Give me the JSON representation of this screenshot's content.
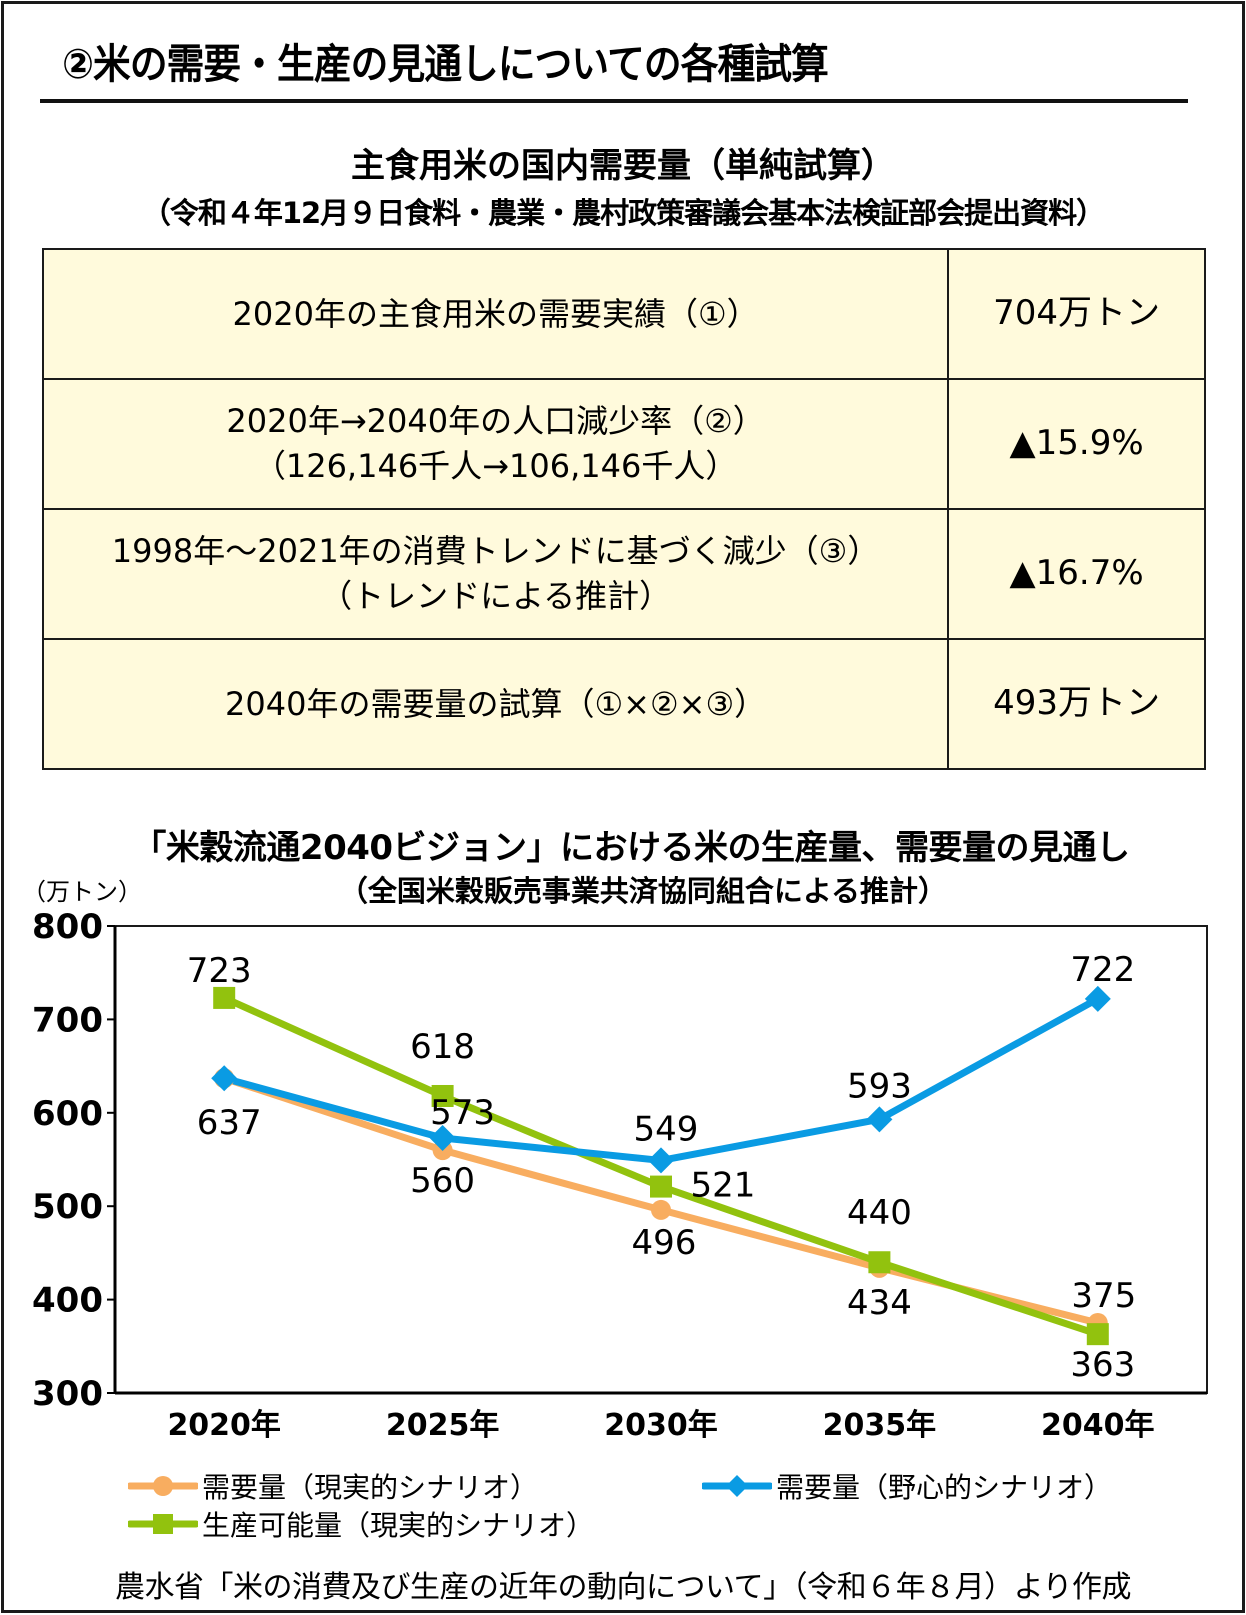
{
  "header": {
    "title": "②米の需要・生産の見通しについての各種試算"
  },
  "table_section": {
    "title": "主食用米の国内需要量（単純試算）",
    "subtitle": "（令和４年12月９日食料・農業・農村政策審議会基本法検証部会提出資料）",
    "rows": [
      {
        "desc_line1": "2020年の主食用米の需要実績（①）",
        "desc_line2": "",
        "value": "704万トン"
      },
      {
        "desc_line1": "2020年→2040年の人口減少率（②）",
        "desc_line2": "（126,146千人→106,146千人）",
        "value": "▲15.9%"
      },
      {
        "desc_line1": "1998年～2021年の消費トレンドに基づく減少（③）",
        "desc_line2": "（トレンドによる推計）",
        "value": "▲16.7%"
      },
      {
        "desc_line1": "2040年の需要量の試算（①×②×③）",
        "desc_line2": "",
        "value": "493万トン"
      }
    ]
  },
  "chart_section": {
    "title": "「米穀流通2040ビジョン」における米の生産量、需要量の見通し",
    "subtitle": "（全国米穀販売事業共済協同組合による推計）",
    "unit": "（万トン）"
  },
  "chart_data": {
    "type": "line",
    "title": "「米穀流通2040ビジョン」における米の生産量、需要量の見通し",
    "subtitle": "（全国米穀販売事業共済協同組合による推計）",
    "xlabel": "",
    "ylabel": "（万トン）",
    "categories": [
      "2020年",
      "2025年",
      "2030年",
      "2035年",
      "2040年"
    ],
    "ylim": [
      300,
      800
    ],
    "yticks": [
      300,
      400,
      500,
      600,
      700,
      800
    ],
    "grid": false,
    "legend_position": "bottom",
    "series": [
      {
        "name": "需要量（現実的シナリオ）",
        "values": [
          637,
          560,
          496,
          434,
          375
        ],
        "color": "#f8ad60",
        "marker": "circle",
        "labels": [
          "",
          "560",
          "496",
          "434",
          "375"
        ]
      },
      {
        "name": "需要量（野心的シナリオ）",
        "values": [
          637,
          573,
          549,
          593,
          722
        ],
        "color": "#0a9be3",
        "marker": "diamond",
        "labels": [
          "637",
          "573",
          "549",
          "593",
          "722"
        ]
      },
      {
        "name": "生産可能量（現実的シナリオ）",
        "values": [
          723,
          618,
          521,
          440,
          363
        ],
        "color": "#92c20e",
        "marker": "square",
        "labels": [
          "723",
          "618",
          "521",
          "440",
          "363"
        ]
      }
    ]
  },
  "legend": [
    {
      "label": "需要量（現実的シナリオ）"
    },
    {
      "label": "需要量（野心的シナリオ）"
    },
    {
      "label": "生産可能量（現実的シナリオ）"
    }
  ],
  "footer": {
    "source": "農水省「米の消費及び生産の近年の動向について」（令和６年８月）より作成"
  }
}
